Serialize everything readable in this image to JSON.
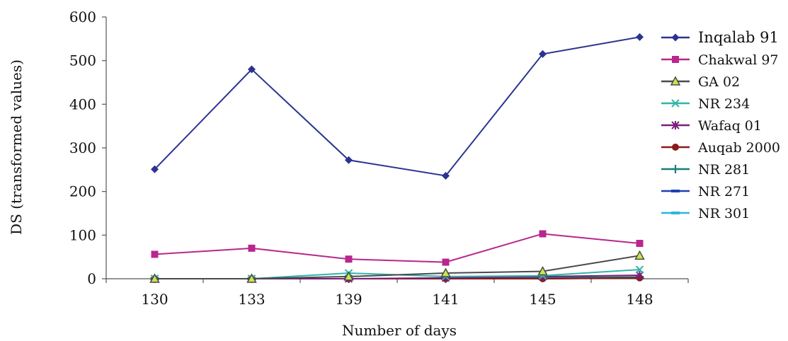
{
  "chart_data": {
    "type": "line",
    "title": "",
    "xlabel": "Number of days",
    "ylabel": "DS (transformed values)",
    "categories": [
      "130",
      "133",
      "139",
      "141",
      "145",
      "148"
    ],
    "ylim": [
      0,
      600
    ],
    "yticks": [
      "0",
      "100",
      "200",
      "300",
      "400",
      "500",
      "600"
    ],
    "grid": false,
    "legend_position": "right",
    "series": [
      {
        "name": "Inqalab 91",
        "color": "#2B3390",
        "marker": "diamond",
        "values": [
          251,
          480,
          272,
          236,
          515,
          554
        ]
      },
      {
        "name": "Chakwal 97",
        "color": "#B8268E",
        "marker": "square",
        "values": [
          56,
          70,
          45,
          38,
          103,
          81
        ]
      },
      {
        "name": "GA 02",
        "color": "#4A4A4A",
        "marker": "triangle",
        "values": [
          0,
          0,
          5,
          13,
          17,
          53
        ]
      },
      {
        "name": "NR 234",
        "color": "#2FB6A8",
        "marker": "x",
        "values": [
          0,
          0,
          13,
          5,
          7,
          21
        ]
      },
      {
        "name": "Wafaq 01",
        "color": "#7A1F7A",
        "marker": "star",
        "values": [
          0,
          0,
          0,
          2,
          5,
          8
        ]
      },
      {
        "name": "Auqab 2000",
        "color": "#8B1A1A",
        "marker": "circle",
        "values": [
          0,
          0,
          0,
          0,
          0,
          2
        ]
      },
      {
        "name": "NR 281",
        "color": "#1B7F79",
        "marker": "plus",
        "values": [
          0,
          0,
          0,
          0,
          3,
          4
        ]
      },
      {
        "name": "NR 271",
        "color": "#1F3FB4",
        "marker": "dash",
        "values": [
          0,
          0,
          0,
          0,
          0,
          2
        ]
      },
      {
        "name": "NR 301",
        "color": "#2AB7DA",
        "marker": "dash",
        "values": [
          0,
          0,
          0,
          0,
          2,
          3
        ]
      }
    ]
  }
}
